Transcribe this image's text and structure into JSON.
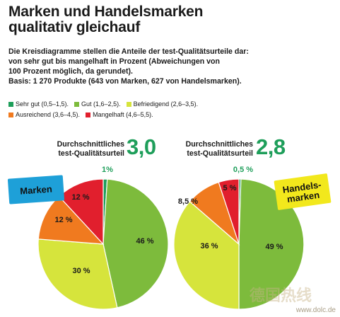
{
  "title_line1": "Marken und Handelsmarken",
  "title_line2": "qualitativ gleichauf",
  "description": [
    "Die Kreisdiagramme stellen die Anteile der test-Qualitätsurteile dar:",
    "von sehr gut bis mangelhaft in Prozent (Abweichungen von",
    "100 Prozent möglich, da gerundet).",
    "Basis: 1 270 Produkte (643 von Marken, 627 von Handelsmarken)."
  ],
  "legend": [
    {
      "label": "Sehr gut (0,5–1,5).",
      "color": "#1e9e5a"
    },
    {
      "label": "Gut (1,6–2,5).",
      "color": "#7dbb3c"
    },
    {
      "label": "Befriedigend (2,6–3,5).",
      "color": "#d6e43c"
    },
    {
      "label": "Ausreichend (3,6–4,5).",
      "color": "#f07a1f"
    },
    {
      "label": "Mangelhaft (4,6–5,5).",
      "color": "#e11f2d"
    }
  ],
  "avg_label_line1": "Durchschnittliches",
  "avg_label_line2": "test-Qualitätsurteil",
  "chart_data": [
    {
      "type": "pie",
      "name": "Marken",
      "average": "3,0",
      "categories": [
        "Sehr gut",
        "Gut",
        "Befriedigend",
        "Ausreichend",
        "Mangelhaft"
      ],
      "values": [
        1,
        46,
        30,
        12,
        12
      ],
      "labels": [
        "1%",
        "46 %",
        "30 %",
        "12 %",
        "12 %"
      ],
      "badge_color": "#1ea0d8"
    },
    {
      "type": "pie",
      "name": "Handels-\nmarken",
      "average": "2,8",
      "categories": [
        "Sehr gut",
        "Gut",
        "Befriedigend",
        "Ausreichend",
        "Mangelhaft"
      ],
      "values": [
        0.5,
        49,
        36,
        8.5,
        5
      ],
      "labels": [
        "0,5 %",
        "49 %",
        "36 %",
        "8,5 %",
        "5 %"
      ],
      "badge_color": "#f2e81c"
    }
  ],
  "watermark_cn": "德国热线",
  "watermark": "www.dolc.de"
}
